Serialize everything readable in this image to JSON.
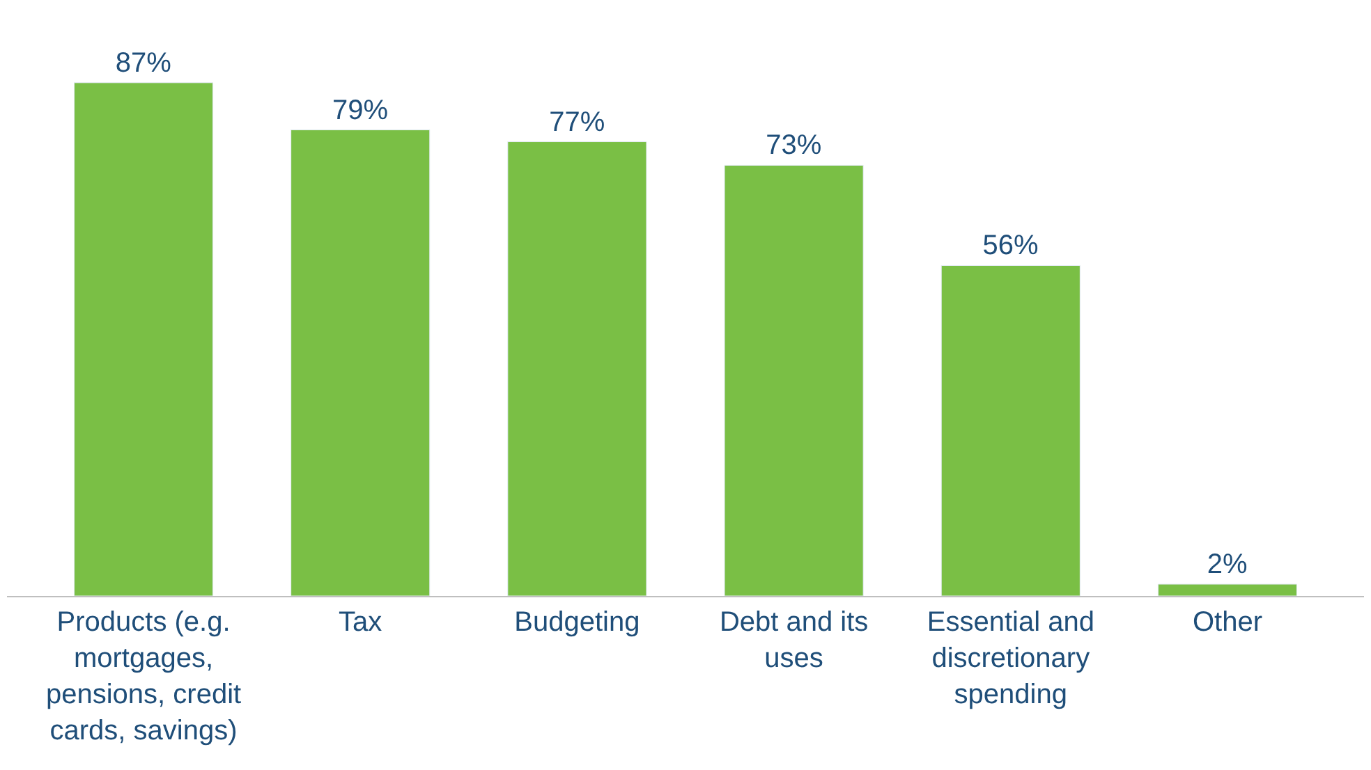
{
  "chart_data": {
    "type": "bar",
    "categories": [
      "Products (e.g. mortgages, pensions, credit cards, savings)",
      "Tax",
      "Budgeting",
      "Debt and its uses",
      "Essential and discretionary spending",
      "Other"
    ],
    "values": [
      87,
      79,
      77,
      73,
      56,
      2
    ],
    "value_labels": [
      "87%",
      "79%",
      "77%",
      "73%",
      "56%",
      "2%"
    ],
    "color": "#7abf45"
  }
}
